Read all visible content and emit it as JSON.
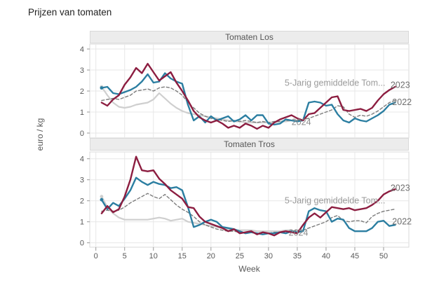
{
  "page": {
    "title": "Prijzen van tomaten"
  },
  "axes": {
    "x_label": "Week",
    "y_label": "euro / kg",
    "x_ticks": [
      0,
      5,
      10,
      15,
      20,
      25,
      30,
      35,
      40,
      45,
      50
    ],
    "y_ticks": [
      0,
      1,
      2,
      3,
      4
    ]
  },
  "colors": {
    "line_2023": "#8c1d40",
    "line_2022": "#7d7d7d",
    "line_2024": "#2b7ea1",
    "line_5yr_avg": "#cfcfcf",
    "grid": "#e7e7e7",
    "plot_border": "#d9d9d9",
    "tick_text": "#595959",
    "annotation_year": "#6e6e6e",
    "annotation_avg": "#9b9b9b",
    "strip_bg": "#ececec"
  },
  "chart_data": [
    {
      "type": "line",
      "title": "Tomaten Los",
      "xlabel": "Week",
      "ylabel": "euro / kg",
      "x_weeks_start": 1,
      "xlim": [
        0,
        54.5
      ],
      "ylim": [
        0,
        4.45
      ],
      "grid": true,
      "series": [
        {
          "name": "5-Jarig gemiddelde Tomaten",
          "style": "solid",
          "color": "#cfcfcf",
          "width": 2.2,
          "marker_start": true,
          "values": [
            2.2,
            1.8,
            1.45,
            1.25,
            1.2,
            1.25,
            1.35,
            1.4,
            1.45,
            1.6,
            1.9,
            1.65,
            1.4,
            1.2,
            1.05,
            0.95,
            0.9,
            0.85,
            0.8,
            0.75,
            0.7,
            0.65,
            0.6,
            0.55,
            0.55,
            0.5,
            0.5,
            0.5,
            0.5,
            0.5,
            0.5,
            0.55,
            0.55,
            0.6
          ]
        },
        {
          "name": "2022",
          "style": "dashed",
          "color": "#7d7d7d",
          "width": 1.4,
          "marker_start": false,
          "values": [
            1.55,
            1.6,
            1.65,
            1.6,
            1.7,
            1.8,
            2.0,
            2.05,
            2.1,
            2.0,
            2.15,
            2.2,
            2.15,
            2.0,
            1.8,
            1.45,
            1.2,
            0.95,
            0.8,
            0.7,
            0.65,
            0.6,
            0.55,
            0.6,
            0.55,
            0.6,
            0.55,
            0.5,
            0.55,
            0.5,
            0.55,
            0.55,
            0.6,
            0.6,
            0.6,
            0.65,
            0.7,
            0.8,
            0.9,
            1.0,
            1.1,
            1.3,
            1.25,
            0.9,
            0.75,
            0.85,
            0.8,
            0.9,
            1.05,
            1.25,
            1.45,
            1.55
          ]
        },
        {
          "name": "2024",
          "style": "solid",
          "color": "#2b7ea1",
          "width": 2.4,
          "marker_start": true,
          "values": [
            2.15,
            2.2,
            1.9,
            1.85,
            1.95,
            2.05,
            2.2,
            2.45,
            2.8,
            2.4,
            2.45,
            2.85,
            2.6,
            2.45,
            2.35,
            1.35,
            0.6,
            0.8,
            0.5,
            0.8,
            0.6,
            0.7,
            0.8,
            0.55,
            0.65,
            0.85,
            0.6,
            0.85,
            0.85,
            0.45,
            0.4,
            0.45,
            0.65,
            0.6,
            0.55,
            0.6,
            1.45,
            1.5,
            1.45,
            1.3,
            1.35,
            0.9,
            0.6,
            0.5,
            0.7,
            0.6,
            0.55,
            0.7,
            0.85,
            1.05,
            1.35,
            1.45
          ]
        },
        {
          "name": "2023",
          "style": "solid",
          "color": "#8c1d40",
          "width": 2.4,
          "marker_start": false,
          "values": [
            1.45,
            1.3,
            1.6,
            1.8,
            2.3,
            2.65,
            3.1,
            2.85,
            3.3,
            2.9,
            2.5,
            2.7,
            2.9,
            2.4,
            2.0,
            1.55,
            1.05,
            0.75,
            0.6,
            0.5,
            0.6,
            0.45,
            0.25,
            0.35,
            0.25,
            0.45,
            0.35,
            0.2,
            0.35,
            0.25,
            0.5,
            0.65,
            0.75,
            0.85,
            0.7,
            0.6,
            0.9,
            0.95,
            1.2,
            1.45,
            1.7,
            1.75,
            1.1,
            1.05,
            1.1,
            1.15,
            1.05,
            1.2,
            1.55,
            1.85,
            2.05,
            2.2
          ]
        }
      ],
      "annotations": [
        {
          "text": "5-Jarig gemiddelde Tom...",
          "week": 32.8,
          "value": 2.38,
          "anchor": "start",
          "color": "#9b9b9b"
        },
        {
          "text": "2023",
          "week": 51.2,
          "value": 2.28,
          "anchor": "start",
          "color": "#6e6e6e"
        },
        {
          "text": "2022",
          "week": 51.5,
          "value": 1.47,
          "anchor": "start",
          "color": "#6e6e6e"
        },
        {
          "text": "2024",
          "week": 35.7,
          "value": 0.52,
          "anchor": "middle",
          "color": "#8a8a8a"
        }
      ]
    },
    {
      "type": "line",
      "title": "Tomaten Tros",
      "xlabel": "Week",
      "ylabel": "euro / kg",
      "x_weeks_start": 1,
      "xlim": [
        0,
        54.5
      ],
      "ylim": [
        0,
        4.45
      ],
      "grid": true,
      "series": [
        {
          "name": "5-Jarig gemiddelde Tomaten",
          "style": "solid",
          "color": "#cfcfcf",
          "width": 2.2,
          "marker_start": true,
          "values": [
            2.2,
            1.7,
            1.4,
            1.2,
            1.1,
            1.1,
            1.1,
            1.1,
            1.1,
            1.15,
            1.2,
            1.15,
            1.05,
            1.1,
            1.15,
            1.0,
            0.95,
            0.9,
            0.85,
            0.8,
            0.75,
            0.7,
            0.65,
            0.6,
            0.6,
            0.6,
            0.6,
            0.55,
            0.55,
            0.55,
            0.55,
            0.55,
            0.6,
            0.6
          ]
        },
        {
          "name": "2022",
          "style": "dashed",
          "color": "#7d7d7d",
          "width": 1.4,
          "marker_start": false,
          "values": [
            1.5,
            1.55,
            1.5,
            1.55,
            1.7,
            1.9,
            2.05,
            2.2,
            2.35,
            2.2,
            2.1,
            2.3,
            2.05,
            1.8,
            1.6,
            1.45,
            1.25,
            1.0,
            0.85,
            0.75,
            0.65,
            0.6,
            0.55,
            0.55,
            0.5,
            0.5,
            0.5,
            0.45,
            0.5,
            0.45,
            0.5,
            0.5,
            0.55,
            0.55,
            0.6,
            0.6,
            0.7,
            0.8,
            0.9,
            1.0,
            1.2,
            1.3,
            1.05,
            1.0,
            1.05,
            1.05,
            0.95,
            1.25,
            1.4,
            1.5,
            1.55,
            1.6
          ]
        },
        {
          "name": "2024",
          "style": "solid",
          "color": "#2b7ea1",
          "width": 2.4,
          "marker_start": true,
          "values": [
            2.05,
            1.6,
            1.9,
            1.75,
            2.1,
            2.5,
            3.1,
            2.9,
            2.75,
            2.9,
            2.8,
            2.75,
            2.6,
            2.65,
            2.5,
            1.7,
            0.75,
            0.85,
            1.0,
            1.1,
            1.0,
            0.75,
            0.7,
            0.65,
            0.55,
            0.45,
            0.5,
            0.45,
            0.4,
            0.45,
            0.45,
            0.5,
            0.45,
            0.55,
            0.5,
            0.55,
            1.5,
            1.65,
            1.55,
            1.5,
            1.0,
            1.15,
            1.1,
            0.7,
            0.55,
            0.55,
            0.55,
            0.7,
            1.0,
            1.05,
            0.8,
            0.85
          ]
        },
        {
          "name": "2023",
          "style": "solid",
          "color": "#8c1d40",
          "width": 2.4,
          "marker_start": false,
          "values": [
            1.4,
            1.75,
            1.45,
            1.6,
            2.2,
            3.0,
            4.1,
            3.45,
            3.4,
            3.45,
            3.05,
            2.8,
            2.5,
            2.3,
            2.1,
            1.7,
            1.65,
            1.25,
            1.0,
            0.9,
            0.8,
            0.7,
            0.55,
            0.65,
            0.45,
            0.5,
            0.55,
            0.4,
            0.5,
            0.45,
            0.35,
            0.5,
            0.55,
            0.5,
            0.45,
            0.85,
            1.2,
            1.4,
            1.2,
            1.45,
            1.7,
            1.65,
            1.6,
            1.65,
            1.55,
            1.6,
            1.65,
            1.8,
            2.0,
            2.3,
            2.45,
            2.55
          ]
        }
      ],
      "annotations": [
        {
          "text": "2023",
          "week": 51.2,
          "value": 2.6,
          "anchor": "start",
          "color": "#6e6e6e"
        },
        {
          "text": "5-Jarig gemiddelde Tom...",
          "week": 32.8,
          "value": 2.0,
          "anchor": "start",
          "color": "#9b9b9b"
        },
        {
          "text": "2022",
          "week": 51.5,
          "value": 1.0,
          "anchor": "start",
          "color": "#6e6e6e"
        },
        {
          "text": "2024",
          "week": 35.2,
          "value": 0.48,
          "anchor": "middle",
          "color": "#8a8a8a"
        }
      ]
    }
  ]
}
